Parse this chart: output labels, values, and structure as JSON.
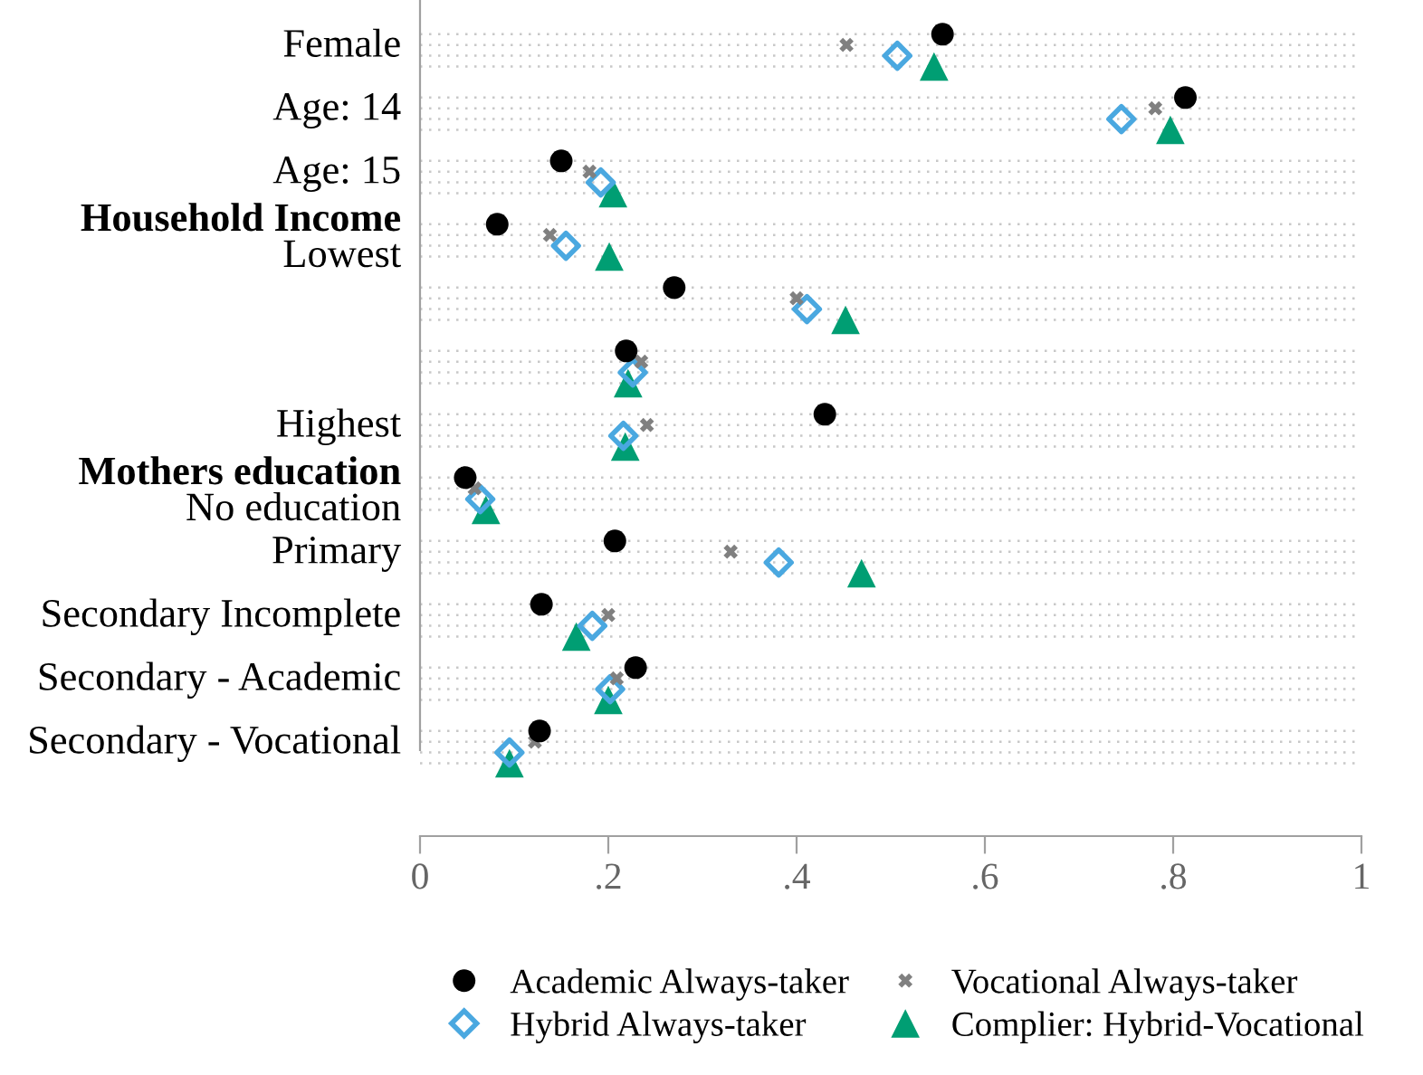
{
  "chart_data": {
    "type": "scatter",
    "categories": [
      "Female",
      "Age: 14",
      "Age: 15",
      "Household Income\nLowest",
      null,
      null,
      "Highest",
      "Mothers education\nNo education",
      "Primary",
      "Secondary Incomplete",
      "Secondary - Academic",
      "Secondary - Vocational"
    ],
    "orientation": "horizontal",
    "series": [
      {
        "name": "Academic Always-taker",
        "color": "#000000",
        "marker": "circle",
        "values": [
          0.555,
          0.813,
          0.15,
          0.082,
          0.27,
          0.219,
          0.43,
          0.048,
          0.207,
          0.129,
          0.229,
          0.127
        ]
      },
      {
        "name": "Vocational Always-taker",
        "color": "#808080",
        "marker": "cross",
        "values": [
          0.453,
          0.781,
          0.18,
          0.138,
          0.4,
          0.235,
          0.241,
          0.058,
          0.33,
          0.2,
          0.209,
          0.122
        ]
      },
      {
        "name": "Hybrid Always-taker",
        "color": "#4aa8e0",
        "marker": "diamond",
        "values": [
          0.507,
          0.745,
          0.192,
          0.155,
          0.411,
          0.226,
          0.216,
          0.064,
          0.381,
          0.183,
          0.202,
          0.095
        ]
      },
      {
        "name": "Complier: Hybrid-Vocational",
        "color": "#009e73",
        "marker": "triangle",
        "values": [
          0.546,
          0.797,
          0.205,
          0.201,
          0.452,
          0.221,
          0.218,
          0.07,
          0.469,
          0.166,
          0.2,
          0.095
        ]
      }
    ],
    "xlim": [
      0,
      1
    ],
    "xticks": [
      0,
      {
        "value": 0.2,
        "label": ".2"
      },
      {
        "value": 0.4,
        "label": ".4"
      },
      {
        "value": 0.6,
        "label": ".6"
      },
      {
        "value": 0.8,
        "label": ".8"
      },
      1
    ],
    "grid": "y",
    "legend": "bottom"
  }
}
